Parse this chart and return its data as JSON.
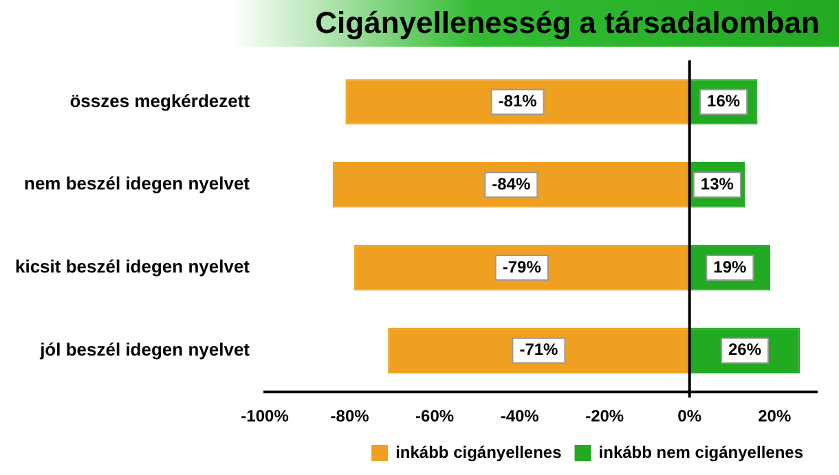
{
  "chart_data": {
    "type": "bar",
    "title": "Cigányellenesség a társadalomban",
    "orientation": "horizontal",
    "stacked": true,
    "categories": [
      "összes megkérdezett",
      "nem beszél idegen nyelvet",
      "kicsit beszél idegen nyelvet",
      "jól beszél idegen nyelvet"
    ],
    "series": [
      {
        "name": "inkább cigányellenes",
        "color": "#f0a020",
        "values": [
          -81,
          -84,
          -79,
          -71
        ],
        "value_labels": [
          "-81%",
          "-84%",
          "-79%",
          "-71%"
        ]
      },
      {
        "name": "inkább nem cigányellenes",
        "color": "#22aa22",
        "values": [
          16,
          13,
          19,
          26
        ],
        "value_labels": [
          "16%",
          "13%",
          "19%",
          "26%"
        ]
      }
    ],
    "xlim": [
      -100,
      30
    ],
    "xticks": [
      {
        "value": -100,
        "label": "-100%"
      },
      {
        "value": -80,
        "label": "-80%"
      },
      {
        "value": -60,
        "label": "-60%"
      },
      {
        "value": -40,
        "label": "-40%"
      },
      {
        "value": -20,
        "label": "-20%"
      },
      {
        "value": 0,
        "label": "0%"
      },
      {
        "value": 20,
        "label": "20%"
      }
    ],
    "ref_lines": [
      {
        "axis": "x",
        "value": 0,
        "color": "#000000"
      }
    ],
    "grid": false,
    "legend": "bottom right"
  }
}
